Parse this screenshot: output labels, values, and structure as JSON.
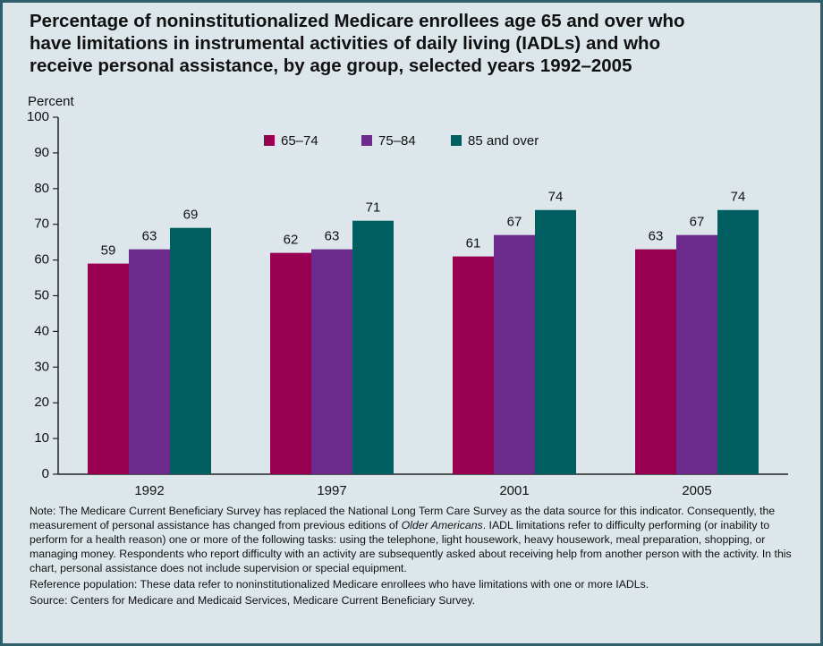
{
  "chart_data": {
    "type": "bar",
    "title": "Percentage of noninstitutionalized Medicare enrollees age 65 and over who have limitations in instrumental activities of daily living (IADLs) and who receive personal assistance, by age group, selected years 1992–2005",
    "y_label": "Percent",
    "categories": [
      "1992",
      "1997",
      "2001",
      "2005"
    ],
    "series": [
      {
        "name": "65–74",
        "color": "#990052",
        "values": [
          59,
          62,
          61,
          63
        ]
      },
      {
        "name": "75–84",
        "color": "#6b2a8c",
        "values": [
          63,
          63,
          67,
          67
        ]
      },
      {
        "name": "85 and over",
        "color": "#005e60",
        "values": [
          69,
          71,
          74,
          74
        ]
      }
    ],
    "ylim": [
      0,
      100
    ],
    "yticks": [
      0,
      10,
      20,
      30,
      40,
      50,
      60,
      70,
      80,
      90,
      100
    ],
    "grid": false,
    "legend": "top",
    "note": [
      "Note: The Medicare Current Beneficiary Survey has replaced the National Long Term Care Survey as the data source for this indicator. Consequently, the measurement of personal assistance has changed from previous editions of ",
      "Older Americans",
      ". IADL limitations refer to difficulty performing (or inability to perform for a health reason) one or more of the following tasks: using the telephone, light housework, heavy housework, meal preparation, shopping, or managing money. Respondents who report difficulty with an activity are subsequently asked about receiving help from another person with the activity. In this chart, personal assistance does not include supervision or special equipment."
    ],
    "reference_population": "Reference population: These data refer to noninstitutionalized Medicare enrollees who have limitations with one or more IADLs.",
    "source": "Source: Centers for Medicare and Medicaid Services, Medicare Current Beneficiary Survey."
  }
}
